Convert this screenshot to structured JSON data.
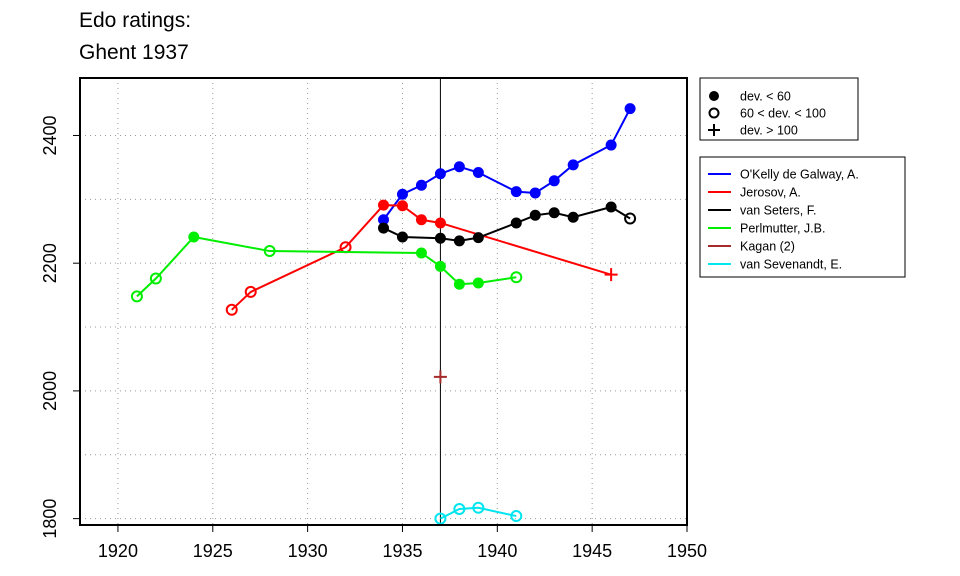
{
  "chart_data": {
    "type": "line",
    "title_lines": [
      "Edo ratings:",
      "Ghent 1937"
    ],
    "xlabel": "",
    "ylabel": "",
    "xlim": [
      1918,
      1950
    ],
    "ylim": [
      1790,
      2490
    ],
    "x_ticks": [
      1920,
      1925,
      1930,
      1935,
      1940,
      1945,
      1950
    ],
    "y_ticks": [
      1800,
      2000,
      2200,
      2400
    ],
    "grid": true,
    "reference_line_x": 1937,
    "marker_legend": [
      {
        "marker": "filled",
        "label": "dev. < 60"
      },
      {
        "marker": "open",
        "label": "60 < dev. < 100"
      },
      {
        "marker": "plus",
        "label": "dev. > 100"
      }
    ],
    "series": [
      {
        "name": "O'Kelly de Galway, A.",
        "color": "#0000ff",
        "points": [
          {
            "x": 1934,
            "y": 2268,
            "m": "filled"
          },
          {
            "x": 1935,
            "y": 2308,
            "m": "filled"
          },
          {
            "x": 1936,
            "y": 2322,
            "m": "filled"
          },
          {
            "x": 1937,
            "y": 2340,
            "m": "filled"
          },
          {
            "x": 1938,
            "y": 2351,
            "m": "filled"
          },
          {
            "x": 1939,
            "y": 2342,
            "m": "filled"
          },
          {
            "x": 1941,
            "y": 2312,
            "m": "filled"
          },
          {
            "x": 1942,
            "y": 2310,
            "m": "filled"
          },
          {
            "x": 1943,
            "y": 2329,
            "m": "filled"
          },
          {
            "x": 1944,
            "y": 2354,
            "m": "filled"
          },
          {
            "x": 1946,
            "y": 2385,
            "m": "filled"
          },
          {
            "x": 1947,
            "y": 2442,
            "m": "filled"
          }
        ]
      },
      {
        "name": "Jerosov, A.",
        "color": "#ff0000",
        "points": [
          {
            "x": 1926,
            "y": 2127,
            "m": "open"
          },
          {
            "x": 1927,
            "y": 2155,
            "m": "open"
          },
          {
            "x": 1932,
            "y": 2225,
            "m": "open"
          },
          {
            "x": 1934,
            "y": 2291,
            "m": "filled"
          },
          {
            "x": 1935,
            "y": 2290,
            "m": "filled"
          },
          {
            "x": 1936,
            "y": 2268,
            "m": "filled"
          },
          {
            "x": 1937,
            "y": 2263,
            "m": "filled"
          },
          {
            "x": 1946,
            "y": 2182,
            "m": "plus"
          }
        ]
      },
      {
        "name": "van Seters, F.",
        "color": "#000000",
        "points": [
          {
            "x": 1934,
            "y": 2255,
            "m": "filled"
          },
          {
            "x": 1935,
            "y": 2241,
            "m": "filled"
          },
          {
            "x": 1937,
            "y": 2239,
            "m": "filled"
          },
          {
            "x": 1938,
            "y": 2235,
            "m": "filled"
          },
          {
            "x": 1939,
            "y": 2240,
            "m": "filled"
          },
          {
            "x": 1941,
            "y": 2263,
            "m": "filled"
          },
          {
            "x": 1942,
            "y": 2275,
            "m": "filled"
          },
          {
            "x": 1943,
            "y": 2279,
            "m": "filled"
          },
          {
            "x": 1944,
            "y": 2272,
            "m": "filled"
          },
          {
            "x": 1946,
            "y": 2288,
            "m": "filled"
          },
          {
            "x": 1947,
            "y": 2270,
            "m": "open"
          }
        ]
      },
      {
        "name": "Perlmutter, J.B.",
        "color": "#00ee00",
        "points": [
          {
            "x": 1921,
            "y": 2148,
            "m": "open"
          },
          {
            "x": 1922,
            "y": 2176,
            "m": "open"
          },
          {
            "x": 1924,
            "y": 2241,
            "m": "filled"
          },
          {
            "x": 1928,
            "y": 2219,
            "m": "open"
          },
          {
            "x": 1936,
            "y": 2216,
            "m": "filled"
          },
          {
            "x": 1937,
            "y": 2195,
            "m": "filled"
          },
          {
            "x": 1938,
            "y": 2167,
            "m": "filled"
          },
          {
            "x": 1939,
            "y": 2169,
            "m": "filled"
          },
          {
            "x": 1941,
            "y": 2178,
            "m": "open"
          }
        ]
      },
      {
        "name": "Kagan (2)",
        "color": "#a52a2a",
        "points": [
          {
            "x": 1937,
            "y": 2022,
            "m": "plus"
          }
        ]
      },
      {
        "name": "van Sevenandt, E.",
        "color": "#00e5ee",
        "points": [
          {
            "x": 1937,
            "y": 1800,
            "m": "open"
          },
          {
            "x": 1938,
            "y": 1815,
            "m": "open"
          },
          {
            "x": 1939,
            "y": 1817,
            "m": "open"
          },
          {
            "x": 1941,
            "y": 1804,
            "m": "open"
          }
        ]
      }
    ]
  }
}
